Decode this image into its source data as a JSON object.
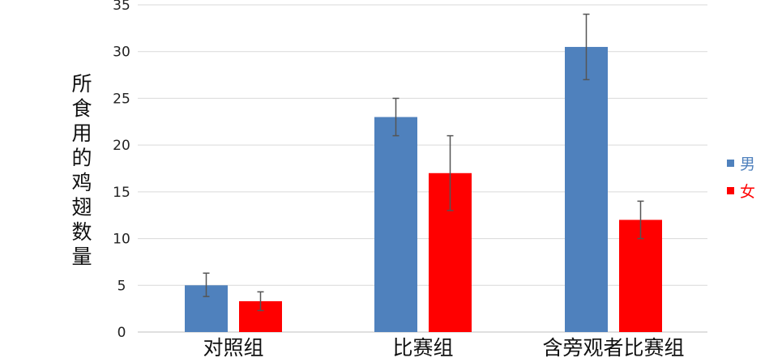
{
  "chart_data": {
    "type": "bar",
    "title": "",
    "xlabel": "",
    "ylabel": "所食用的鸡翅数量",
    "ylim": [
      0,
      35
    ],
    "yticks": [
      0,
      5,
      10,
      15,
      20,
      25,
      30,
      35
    ],
    "grid": true,
    "legend": "right",
    "error_bars": true,
    "categories": [
      "对照组",
      "比赛组",
      "含旁观者比赛组"
    ],
    "series": [
      {
        "name": "男",
        "color": "#4f81bd",
        "values": [
          5,
          23,
          30.5
        ],
        "err_low": [
          3.8,
          21,
          27
        ],
        "err_high": [
          6.3,
          25,
          34
        ]
      },
      {
        "name": "女",
        "color": "#ff0000",
        "values": [
          3.3,
          17,
          12
        ],
        "err_low": [
          2.3,
          13,
          10
        ],
        "err_high": [
          4.3,
          21,
          14
        ]
      }
    ]
  }
}
